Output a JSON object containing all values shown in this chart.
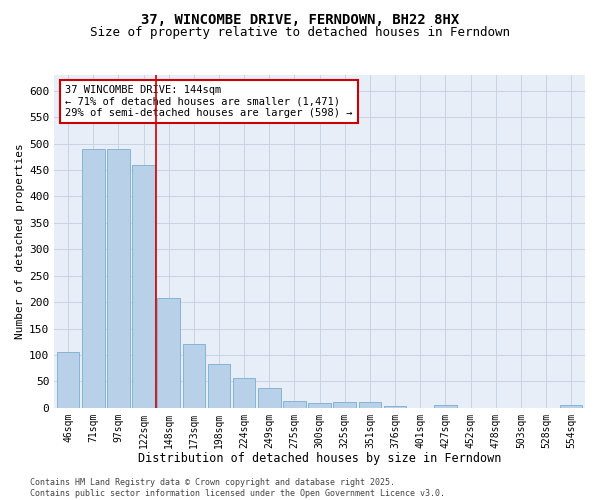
{
  "title": "37, WINCOMBE DRIVE, FERNDOWN, BH22 8HX",
  "subtitle": "Size of property relative to detached houses in Ferndown",
  "xlabel": "Distribution of detached houses by size in Ferndown",
  "ylabel": "Number of detached properties",
  "footer_line1": "Contains HM Land Registry data © Crown copyright and database right 2025.",
  "footer_line2": "Contains public sector information licensed under the Open Government Licence v3.0.",
  "categories": [
    "46sqm",
    "71sqm",
    "97sqm",
    "122sqm",
    "148sqm",
    "173sqm",
    "198sqm",
    "224sqm",
    "249sqm",
    "275sqm",
    "300sqm",
    "325sqm",
    "351sqm",
    "376sqm",
    "401sqm",
    "427sqm",
    "452sqm",
    "478sqm",
    "503sqm",
    "528sqm",
    "554sqm"
  ],
  "values": [
    105,
    490,
    490,
    460,
    207,
    121,
    82,
    57,
    38,
    13,
    8,
    11,
    11,
    4,
    0,
    5,
    0,
    0,
    0,
    0,
    6
  ],
  "bar_color": "#b8d0e8",
  "bar_edge_color": "#7aaed0",
  "reference_line_x": 3.5,
  "ref_line_color": "#cc0000",
  "annotation_text": "37 WINCOMBE DRIVE: 144sqm\n← 71% of detached houses are smaller (1,471)\n29% of semi-detached houses are larger (598) →",
  "annotation_box_color": "#cc0000",
  "annotation_text_color": "#000000",
  "ylim": [
    0,
    630
  ],
  "yticks": [
    0,
    50,
    100,
    150,
    200,
    250,
    300,
    350,
    400,
    450,
    500,
    550,
    600
  ],
  "grid_color": "#c8d4e4",
  "background_color": "#e8eef8",
  "title_fontsize": 10,
  "subtitle_fontsize": 9
}
